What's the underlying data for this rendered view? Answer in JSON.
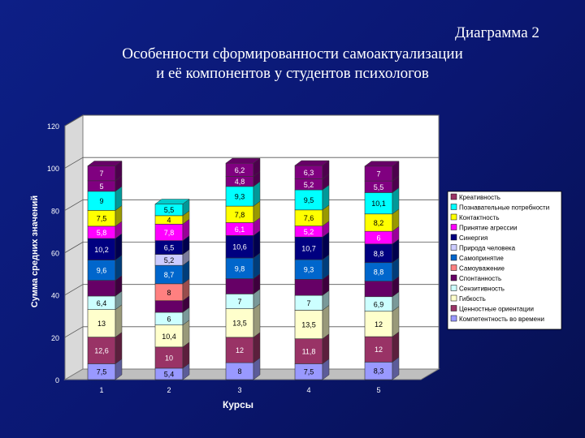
{
  "header": {
    "prefix": "Диаграмма 2",
    "title_line1": "Особенности сформированности самоактуализации",
    "title_line2": "и её компонентов у студентов психологов"
  },
  "chart_data": {
    "type": "bar",
    "stacked": true,
    "categories": [
      "1",
      "2",
      "3",
      "4",
      "5"
    ],
    "xlabel": "Курсы",
    "ylabel": "Сумма средних значений",
    "ylim": [
      0,
      120
    ],
    "yticks": [
      0,
      20,
      40,
      60,
      80,
      100,
      120
    ],
    "legend_position": "right",
    "series": [
      {
        "name": "Компетентность во времени",
        "color": "#9999ff",
        "values": [
          7.5,
          5.4,
          8,
          7.5,
          8.3
        ],
        "labels": [
          "7,5",
          "5,4",
          "8",
          "7,5",
          "8,3"
        ]
      },
      {
        "name": "Ценностные ориентации",
        "color": "#993366",
        "values": [
          12.6,
          10,
          12,
          11.8,
          12
        ],
        "labels": [
          "12,6",
          "10",
          "12",
          "11,8",
          "12"
        ]
      },
      {
        "name": "Гибкость",
        "color": "#ffffcc",
        "values": [
          13,
          10.4,
          13.5,
          13.5,
          12
        ],
        "labels": [
          "13",
          "10,4",
          "13,5",
          "13,5",
          "12"
        ]
      },
      {
        "name": "Сензитивность",
        "color": "#ccffff",
        "values": [
          6.4,
          6,
          7,
          7,
          6.9
        ],
        "labels": [
          "6,4",
          "6",
          "7",
          "7",
          "6,9"
        ]
      },
      {
        "name": "Спонтанность",
        "color": "#660066",
        "values": [
          7.4,
          5.5,
          7.2,
          7.6,
          7.3
        ],
        "labels": [
          "",
          "",
          "",
          "",
          ""
        ]
      },
      {
        "name": "Самоуважение",
        "color": "#ff8080",
        "values": [
          null,
          8,
          null,
          null,
          null
        ],
        "labels": [
          "",
          "8",
          "",
          "",
          ""
        ]
      },
      {
        "name": "Самопринятие",
        "color": "#0066cc",
        "values": [
          9.6,
          8.7,
          9.8,
          9.3,
          8.8
        ],
        "labels": [
          "9,6",
          "8,7",
          "9,8",
          "9,3",
          "8,8"
        ]
      },
      {
        "name": "Природа человека",
        "color": "#ccccff",
        "values": [
          null,
          5.2,
          null,
          null,
          null
        ],
        "labels": [
          "",
          "5,2",
          "",
          "",
          ""
        ]
      },
      {
        "name": "Синергия",
        "color": "#000080",
        "values": [
          10.2,
          6.5,
          10.6,
          10.7,
          8.8
        ],
        "labels": [
          "10,2",
          "6,5",
          "10,6",
          "10,7",
          "8,8"
        ]
      },
      {
        "name": "Принятие агрессии",
        "color": "#ff00ff",
        "values": [
          5.8,
          7.8,
          6.1,
          5.2,
          6
        ],
        "labels": [
          "5,8",
          "7,8",
          "6,1",
          "5,2",
          "6"
        ]
      },
      {
        "name": "Контактность",
        "color": "#ffff00",
        "values": [
          7.5,
          4,
          7.8,
          7.6,
          8.2
        ],
        "labels": [
          "7,5",
          "4",
          "7,8",
          "7,6",
          "8,2"
        ]
      },
      {
        "name": "Познавательные потребности",
        "color": "#00ffff",
        "values": [
          9,
          5.5,
          9.3,
          9.5,
          10.1
        ],
        "labels": [
          "9",
          "5,5",
          "9,3",
          "9,5",
          "10,1"
        ]
      },
      {
        "name": "Креативность",
        "color": "#800080",
        "values": [
          5,
          null,
          4.8,
          5.2,
          5.5
        ],
        "labels": [
          "5",
          "",
          "4,8",
          "5,2",
          "5,5"
        ]
      },
      {
        "name": "",
        "color": "#800080",
        "values": [
          7,
          null,
          6.2,
          6.3,
          7
        ],
        "labels": [
          "7",
          "",
          "6,2",
          "6,3",
          "7"
        ]
      }
    ],
    "legend": [
      {
        "label": "Креативность",
        "color": "#993366"
      },
      {
        "label": "Познавательные потребности",
        "color": "#00ffff"
      },
      {
        "label": "Контактность",
        "color": "#ffff00"
      },
      {
        "label": "Принятие агрессии",
        "color": "#ff00ff"
      },
      {
        "label": "Синергия",
        "color": "#000080"
      },
      {
        "label": "Природа человека",
        "color": "#ccccff"
      },
      {
        "label": "Самопринятие",
        "color": "#0066cc"
      },
      {
        "label": "Самоуважение",
        "color": "#ff8080"
      },
      {
        "label": "Спонтанность",
        "color": "#660066"
      },
      {
        "label": "Сензитивность",
        "color": "#ccffff"
      },
      {
        "label": "Гибкость",
        "color": "#ffffcc"
      },
      {
        "label": "Ценностные ориентации",
        "color": "#993366"
      },
      {
        "label": "Компетентность во времени",
        "color": "#9999ff"
      }
    ]
  }
}
